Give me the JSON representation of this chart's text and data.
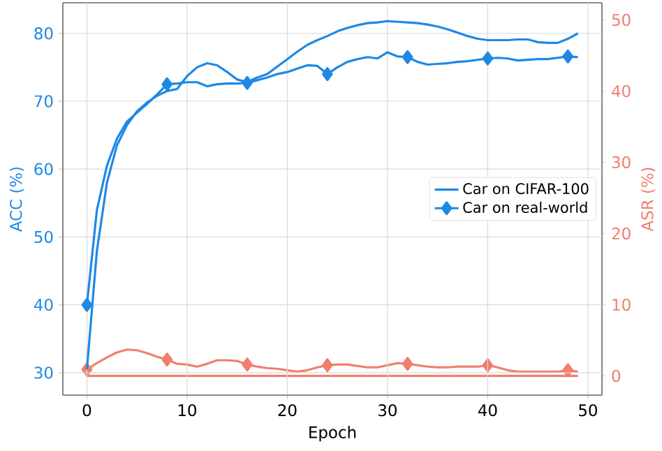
{
  "chart_data": {
    "type": "line",
    "xlabel": "Epoch",
    "ylabel": "ACC (%)",
    "y2label": "ASR (%)",
    "x": [
      0,
      1,
      2,
      3,
      4,
      5,
      6,
      7,
      8,
      9,
      10,
      11,
      12,
      13,
      14,
      15,
      16,
      17,
      18,
      19,
      20,
      21,
      22,
      23,
      24,
      25,
      26,
      27,
      28,
      29,
      30,
      31,
      32,
      33,
      34,
      35,
      36,
      37,
      38,
      39,
      40,
      41,
      42,
      43,
      44,
      45,
      46,
      47,
      48,
      49
    ],
    "xlim": [
      -2.4,
      51.4
    ],
    "xticks": [
      0,
      10,
      20,
      30,
      40,
      50
    ],
    "ylim": [
      26.7,
      84.5
    ],
    "yticks": [
      30,
      40,
      50,
      60,
      70,
      80
    ],
    "y2lim": [
      -2.7,
      52.4
    ],
    "y2ticks": [
      0,
      10,
      20,
      30,
      40,
      50
    ],
    "grid": true,
    "legend": "right",
    "series": [
      {
        "name": "Car on CIFAR-100",
        "color": "#1e88e5",
        "marker": "none",
        "values": [
          30.5,
          48,
          58,
          63.5,
          66.5,
          68.5,
          69.8,
          70.8,
          71.5,
          71.8,
          73.7,
          75,
          75.6,
          75.3,
          74.3,
          73.2,
          72.8,
          73.5,
          74,
          75.1,
          76.2,
          77.3,
          78.3,
          79,
          79.6,
          80.3,
          80.8,
          81.2,
          81.5,
          81.6,
          81.8,
          81.7,
          81.6,
          81.5,
          81.3,
          81,
          80.6,
          80.1,
          79.6,
          79.2,
          79,
          79,
          79,
          79.1,
          79.1,
          78.7,
          78.6,
          78.6,
          79.2,
          80
        ]
      },
      {
        "name": "Car on real-world",
        "color": "#1e88e5",
        "marker": "none",
        "values": [
          40,
          54,
          60.5,
          64.5,
          67,
          68.3,
          69.6,
          71,
          72.5,
          72.6,
          72.8,
          72.8,
          72.2,
          72.5,
          72.6,
          72.6,
          72.7,
          73.1,
          73.5,
          74,
          74.3,
          74.8,
          75.3,
          75.2,
          74,
          75,
          75.8,
          76.2,
          76.5,
          76.3,
          77.2,
          76.6,
          76.5,
          75.8,
          75.4,
          75.5,
          75.6,
          75.8,
          75.9,
          76.1,
          76.3,
          76.4,
          76.3,
          76,
          76.1,
          76.2,
          76.2,
          76.4,
          76.6,
          76.5
        ]
      },
      {
        "color": "#f07f6e",
        "marker": "none",
        "axis": "y2",
        "values": [
          0,
          0,
          0,
          0,
          0,
          0,
          0,
          0,
          0,
          0,
          0,
          0,
          0,
          0,
          0,
          0,
          0,
          0,
          0,
          0,
          0,
          0,
          0,
          0,
          0,
          0,
          0,
          0,
          0,
          0,
          0,
          0,
          0,
          0,
          0,
          0,
          0,
          0,
          0,
          0,
          0,
          0,
          0,
          0,
          0,
          0,
          0,
          0,
          0,
          0
        ]
      },
      {
        "color": "#f07f6e",
        "marker": "none",
        "axis": "y2",
        "values": [
          0.9,
          1.8,
          2.6,
          3.3,
          3.7,
          3.6,
          3.2,
          2.7,
          2.3,
          1.7,
          1.6,
          1.3,
          1.7,
          2.2,
          2.2,
          2.1,
          1.6,
          1.3,
          1.1,
          1,
          0.8,
          0.6,
          0.8,
          1.2,
          1.5,
          1.6,
          1.6,
          1.4,
          1.2,
          1.2,
          1.5,
          1.8,
          1.7,
          1.5,
          1.3,
          1.2,
          1.2,
          1.3,
          1.3,
          1.3,
          1.5,
          1.2,
          0.8,
          0.6,
          0.6,
          0.6,
          0.6,
          0.6,
          0.8,
          0.6
        ]
      },
      {
        "type": "scatter",
        "color": "#1e88e5",
        "marker": "diamond",
        "x": [
          0,
          8,
          16,
          24,
          32,
          40,
          48
        ],
        "values": [
          40,
          72.5,
          72.7,
          74,
          76.5,
          76.3,
          76.6
        ]
      },
      {
        "type": "scatter",
        "color": "#f07f6e",
        "marker": "diamond",
        "axis": "y2",
        "x": [
          0,
          8,
          16,
          24,
          32,
          40,
          48
        ],
        "values": [
          0.9,
          2.3,
          1.6,
          1.5,
          1.7,
          1.5,
          0.8
        ]
      }
    ]
  }
}
